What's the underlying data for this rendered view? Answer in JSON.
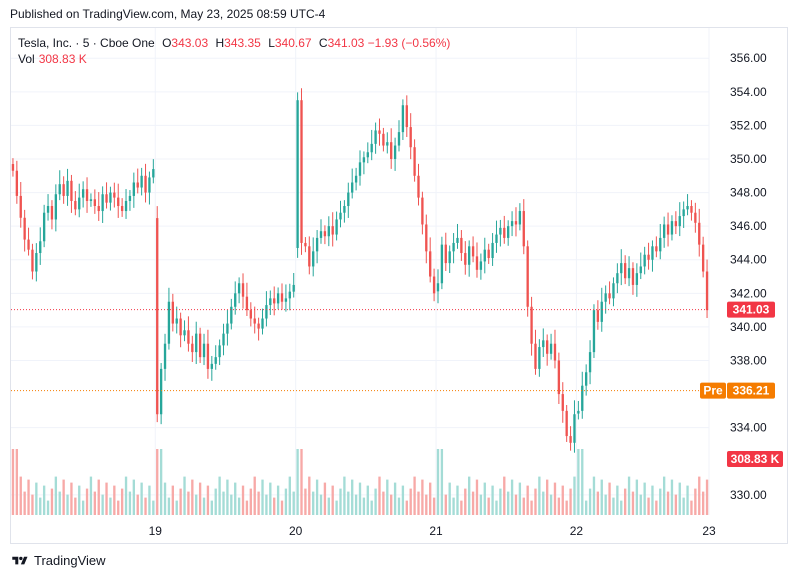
{
  "header": {
    "published": "Published on TradingView.com, May 23, 2025 08:59 UTC-4"
  },
  "legend": {
    "symbol": "Tesla, Inc. · 5 · Cboe One",
    "open_label": "O",
    "open": "343.03",
    "high_label": "H",
    "high": "343.35",
    "low_label": "L",
    "low": "340.67",
    "close_label": "C",
    "close": "341.03",
    "change": "−1.93 (−0.56%)",
    "vol_label": "Vol",
    "vol_value": "308.83 K"
  },
  "brand": {
    "name": "TradingView"
  },
  "colors": {
    "up": "#26a69a",
    "down": "#ef5350",
    "vol_up": "#a4dcd6",
    "vol_down": "#f7a9a7",
    "price_tag": "#f23645",
    "pre_tag": "#f57c00",
    "grid": "#f0f3fa"
  },
  "chart_data": {
    "type": "candlestick",
    "ylim": [
      328.8,
      357.8
    ],
    "y_ticks": [
      "356.00",
      "354.00",
      "352.00",
      "350.00",
      "348.00",
      "346.00",
      "344.00",
      "342.00",
      "340.00",
      "338.00",
      "334.00",
      "330.00"
    ],
    "x_tick_labels": [
      "19",
      "20",
      "21",
      "22",
      "23"
    ],
    "last_price_label": "341.03",
    "pre_label": "Pre",
    "pre_price_label": "336.21",
    "volume_label": "308.83 K",
    "last_price": 341.03,
    "pre_price": 336.21,
    "sessions": [
      {
        "day": "",
        "closes": [
          349.3,
          347.8,
          346.5,
          345.2,
          344.6,
          343.3,
          344.4,
          345.1,
          346.8,
          347.2,
          346.4,
          347.9,
          348.5,
          347.8,
          348.7,
          347.5,
          347.0,
          347.7,
          348.2,
          347.5,
          347.6,
          347.2,
          346.9,
          347.9,
          347.4,
          348.0,
          347.7,
          347.2,
          346.9,
          347.5,
          347.8,
          348.6,
          348.3,
          349.0,
          348.0,
          348.9,
          349.4
        ]
      },
      {
        "day": "19",
        "closes": [
          334.8,
          337.5,
          339.0,
          341.5,
          340.2,
          340.5,
          339.5,
          339.8,
          339.0,
          338.5,
          339.6,
          338.2,
          339.0,
          337.5,
          337.8,
          338.2,
          338.9,
          339.6,
          340.2,
          341.2,
          342.0,
          342.6,
          341.8,
          341.0,
          340.5,
          340.2,
          339.9,
          340.5,
          341.3,
          341.7,
          341.4,
          342.0,
          341.5,
          341.7,
          342.1,
          342.5
        ]
      },
      {
        "day": "20",
        "closes": [
          353.5,
          345.0,
          344.8,
          343.6,
          344.5,
          345.3,
          345.7,
          345.4,
          346.0,
          345.5,
          346.4,
          346.8,
          347.2,
          348.0,
          348.6,
          349.0,
          349.8,
          350.1,
          350.4,
          350.9,
          351.7,
          351.5,
          350.8,
          351.0,
          350.0,
          350.8,
          351.6,
          353.2,
          351.9,
          350.7,
          349.0,
          347.7,
          346.1,
          344.5,
          343.0,
          342.0
        ]
      },
      {
        "day": "21",
        "closes": [
          342.6,
          344.9,
          343.8,
          344.5,
          345.0,
          345.3,
          344.4,
          343.7,
          344.8,
          344.2,
          343.4,
          343.9,
          344.6,
          344.1,
          345.0,
          345.5,
          345.9,
          345.3,
          346.0,
          346.3,
          346.1,
          346.9,
          344.8,
          341.2,
          339.0,
          337.5,
          338.8,
          339.2,
          338.4,
          339.0,
          338.0,
          336.0,
          335.0,
          333.5,
          333.1,
          334.8
        ]
      },
      {
        "day": "22",
        "closes": [
          335.0,
          336.5,
          337.3,
          338.5,
          341.0,
          340.3,
          341.5,
          342.0,
          341.7,
          342.6,
          343.2,
          343.8,
          342.9,
          343.5,
          342.5,
          343.2,
          343.6,
          344.3,
          344.0,
          344.8,
          344.5,
          345.3,
          346.1,
          345.5,
          346.3,
          346.0,
          346.6,
          347.0,
          347.2,
          346.8,
          346.2,
          344.9,
          343.3,
          341.0
        ]
      }
    ],
    "volume_scale_label": "308.83 K"
  }
}
